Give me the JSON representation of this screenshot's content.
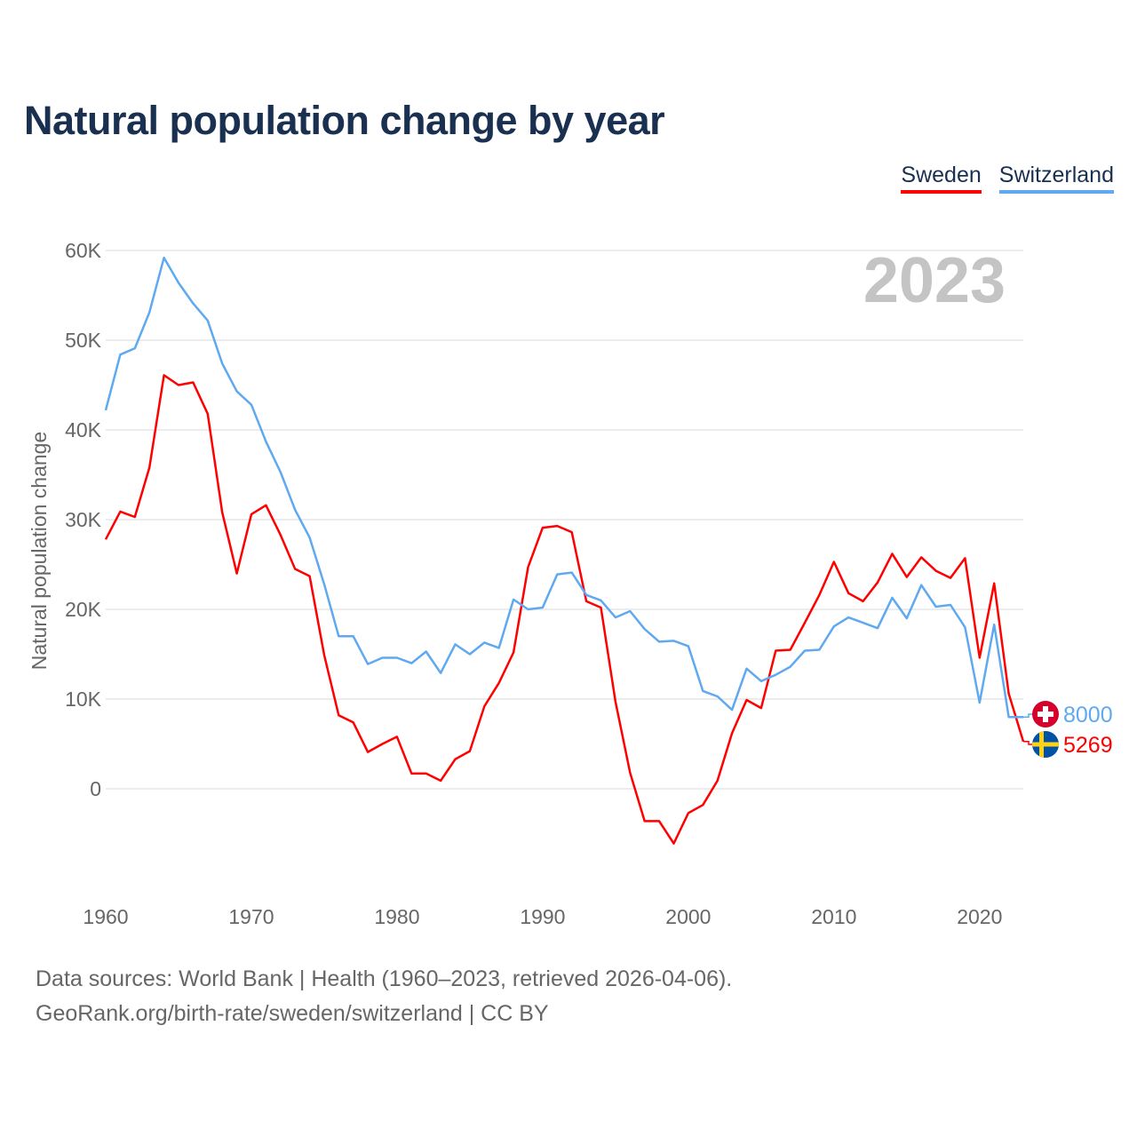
{
  "title": "Natural population change by year",
  "legend": [
    {
      "label": "Sweden",
      "color": "#ff0000"
    },
    {
      "label": "Switzerland",
      "color": "#5ea9f0"
    }
  ],
  "footer": {
    "line1": "Data sources: World Bank | Health (1960–2023, retrieved 2026-04-06).",
    "line2": "GeoRank.org/birth-rate/sweden/switzerland | CC BY"
  },
  "chart_data": {
    "type": "line",
    "title": "Natural population change by year",
    "ylabel": "Natural population change",
    "xlabel": "",
    "year_label": "2023",
    "ylim": [
      -10000,
      60000
    ],
    "xlim": [
      1960,
      2023
    ],
    "yticks": [
      {
        "v": 0,
        "label": "0"
      },
      {
        "v": 10000,
        "label": "10K"
      },
      {
        "v": 20000,
        "label": "20K"
      },
      {
        "v": 30000,
        "label": "30K"
      },
      {
        "v": 40000,
        "label": "40K"
      },
      {
        "v": 50000,
        "label": "50K"
      },
      {
        "v": 60000,
        "label": "60K"
      }
    ],
    "xticks": [
      {
        "v": 1960,
        "label": "1960"
      },
      {
        "v": 1970,
        "label": "1970"
      },
      {
        "v": 1980,
        "label": "1980"
      },
      {
        "v": 1990,
        "label": "1990"
      },
      {
        "v": 2000,
        "label": "2000"
      },
      {
        "v": 2010,
        "label": "2010"
      },
      {
        "v": 2020,
        "label": "2020"
      }
    ],
    "grid": true,
    "legend_position": "top-right",
    "x_start": 1960,
    "series": [
      {
        "name": "Sweden",
        "color": "#ff0000",
        "end_label": "5269",
        "flag": "sweden-flag",
        "values": [
          27800,
          30900,
          30300,
          35800,
          46100,
          45000,
          45300,
          41800,
          30800,
          24000,
          30600,
          31600,
          28300,
          24500,
          23700,
          14900,
          8200,
          7400,
          4100,
          5000,
          5800,
          1700,
          1700,
          900,
          3300,
          4200,
          9200,
          11800,
          15200,
          24700,
          29100,
          29300,
          28600,
          20900,
          20200,
          9700,
          1800,
          -3600,
          -3600,
          -6100,
          -2700,
          -1800,
          900,
          6200,
          9900,
          9000,
          15400,
          15500,
          18500,
          21600,
          25300,
          21800,
          20900,
          23000,
          26200,
          23600,
          25800,
          24300,
          23500,
          25700,
          14600,
          22900,
          10600,
          5269
        ]
      },
      {
        "name": "Switzerland",
        "color": "#5ea9f0",
        "end_label": "8000",
        "flag": "switzerland-flag",
        "values": [
          42200,
          48400,
          49100,
          53100,
          59200,
          56400,
          54100,
          52200,
          47400,
          44300,
          42800,
          38700,
          35300,
          31100,
          28000,
          22800,
          17000,
          17000,
          13900,
          14600,
          14600,
          14000,
          15300,
          12900,
          16100,
          15000,
          16300,
          15700,
          21100,
          20000,
          20200,
          23900,
          24100,
          21600,
          21000,
          19100,
          19800,
          17800,
          16400,
          16500,
          15900,
          10900,
          10300,
          8800,
          13400,
          12000,
          12700,
          13600,
          15400,
          15500,
          18100,
          19100,
          18500,
          17900,
          21300,
          19000,
          22700,
          20300,
          20500,
          18000,
          9600,
          18300,
          8000,
          8000
        ]
      }
    ]
  }
}
